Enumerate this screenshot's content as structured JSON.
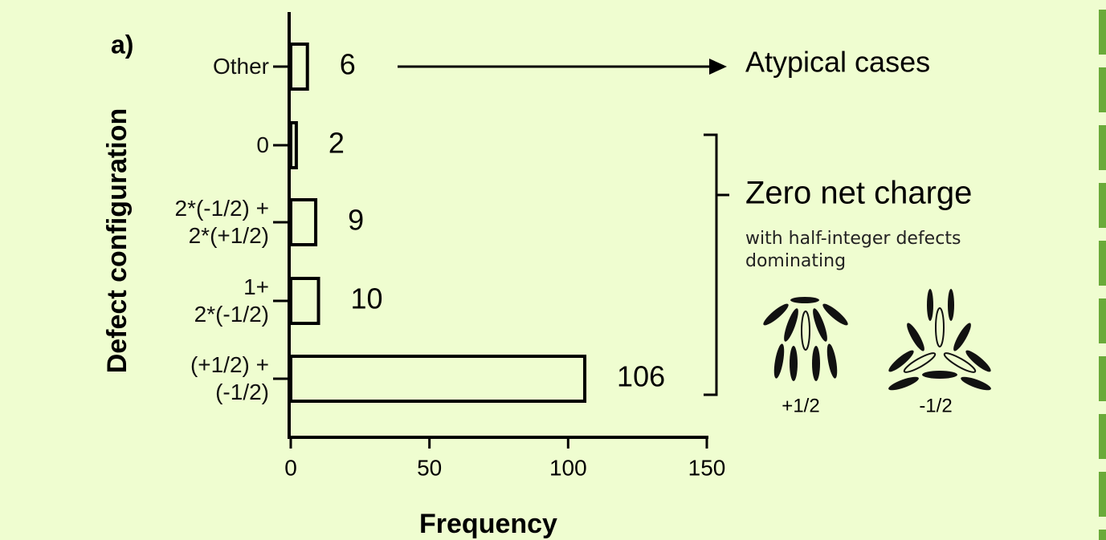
{
  "chart_data": {
    "type": "barh",
    "label": "a)",
    "xlabel": "Frequency",
    "ylabel": "Defect configuration",
    "categories": [
      "Other",
      "0",
      "2*(-1/2) +\n2*(+1/2)",
      "1+\n2*(-1/2)",
      "(+1/2) +\n(-1/2)"
    ],
    "values": [
      6,
      2,
      9,
      10,
      106
    ],
    "color": "#000000",
    "xlim": [
      0,
      150
    ],
    "xticks": [
      0,
      50,
      100,
      150
    ],
    "annotations": {
      "atypical": "Atypical cases",
      "zero_net": "Zero net charge",
      "zero_net_note": "with half-integer defects dominating",
      "plus_half": "+1/2",
      "minus_half": "-1/2"
    }
  }
}
